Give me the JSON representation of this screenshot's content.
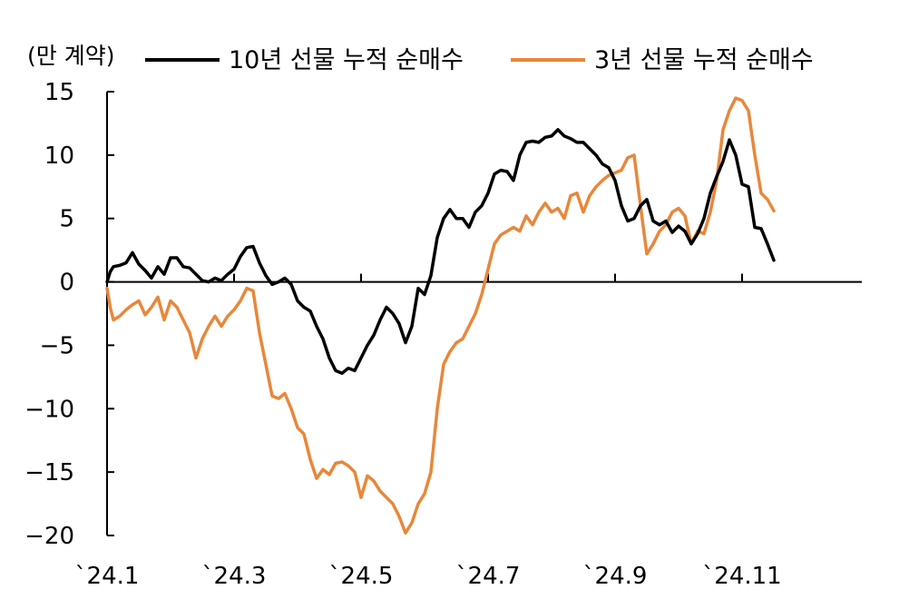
{
  "chart_data": {
    "type": "line",
    "unit_label": "(만 계약)",
    "ylim": [
      -20,
      15
    ],
    "yticks": [
      15,
      10,
      5,
      0,
      -5,
      -10,
      -15,
      -20
    ],
    "ytick_labels": [
      "15",
      "10",
      "5",
      "0",
      "−5",
      "−10",
      "−15",
      "−20"
    ],
    "xlim": [
      0,
      12
    ],
    "xticks": [
      0,
      2,
      4,
      6,
      8,
      10
    ],
    "xtick_labels": [
      "`24.1",
      "`24.3",
      "`24.5",
      "`24.7",
      "`24.9",
      "`24.11"
    ],
    "grid": false,
    "legend_position": "top",
    "series": [
      {
        "name": "10년 선물 누적 순매수",
        "color": "#000000",
        "points": [
          [
            0.0,
            0.0
          ],
          [
            0.05,
            0.8
          ],
          [
            0.1,
            1.2
          ],
          [
            0.2,
            1.3
          ],
          [
            0.3,
            1.5
          ],
          [
            0.4,
            2.3
          ],
          [
            0.5,
            1.4
          ],
          [
            0.6,
            0.9
          ],
          [
            0.7,
            0.3
          ],
          [
            0.8,
            1.2
          ],
          [
            0.9,
            0.6
          ],
          [
            1.0,
            1.9
          ],
          [
            1.1,
            1.9
          ],
          [
            1.2,
            1.2
          ],
          [
            1.3,
            1.1
          ],
          [
            1.4,
            0.6
          ],
          [
            1.5,
            0.1
          ],
          [
            1.6,
            0.0
          ],
          [
            1.7,
            0.3
          ],
          [
            1.8,
            0.1
          ],
          [
            1.9,
            0.6
          ],
          [
            2.0,
            1.0
          ],
          [
            2.1,
            2.0
          ],
          [
            2.2,
            2.7
          ],
          [
            2.3,
            2.8
          ],
          [
            2.4,
            1.5
          ],
          [
            2.5,
            0.5
          ],
          [
            2.6,
            -0.2
          ],
          [
            2.7,
            0.0
          ],
          [
            2.8,
            0.3
          ],
          [
            2.9,
            -0.2
          ],
          [
            3.0,
            -1.5
          ],
          [
            3.1,
            -2.0
          ],
          [
            3.2,
            -2.3
          ],
          [
            3.3,
            -3.5
          ],
          [
            3.4,
            -4.5
          ],
          [
            3.5,
            -6.0
          ],
          [
            3.6,
            -7.0
          ],
          [
            3.7,
            -7.2
          ],
          [
            3.8,
            -6.8
          ],
          [
            3.9,
            -7.0
          ],
          [
            4.0,
            -6.0
          ],
          [
            4.1,
            -5.0
          ],
          [
            4.2,
            -4.2
          ],
          [
            4.3,
            -3.0
          ],
          [
            4.4,
            -2.0
          ],
          [
            4.5,
            -2.5
          ],
          [
            4.6,
            -3.3
          ],
          [
            4.7,
            -4.8
          ],
          [
            4.8,
            -3.5
          ],
          [
            4.9,
            -0.5
          ],
          [
            5.0,
            -1.0
          ],
          [
            5.1,
            0.5
          ],
          [
            5.2,
            3.5
          ],
          [
            5.3,
            5.0
          ],
          [
            5.4,
            5.7
          ],
          [
            5.5,
            5.0
          ],
          [
            5.6,
            5.0
          ],
          [
            5.7,
            4.3
          ],
          [
            5.8,
            5.5
          ],
          [
            5.9,
            6.0
          ],
          [
            6.0,
            7.0
          ],
          [
            6.1,
            8.5
          ],
          [
            6.2,
            8.8
          ],
          [
            6.3,
            8.7
          ],
          [
            6.4,
            8.0
          ],
          [
            6.5,
            10.0
          ],
          [
            6.6,
            11.0
          ],
          [
            6.7,
            11.1
          ],
          [
            6.8,
            11.0
          ],
          [
            6.9,
            11.4
          ],
          [
            7.0,
            11.5
          ],
          [
            7.1,
            12.0
          ],
          [
            7.2,
            11.5
          ],
          [
            7.3,
            11.3
          ],
          [
            7.4,
            11.0
          ],
          [
            7.5,
            11.0
          ],
          [
            7.6,
            10.5
          ],
          [
            7.7,
            10.0
          ],
          [
            7.8,
            9.3
          ],
          [
            7.9,
            9.0
          ],
          [
            8.0,
            8.0
          ],
          [
            8.1,
            6.0
          ],
          [
            8.2,
            4.8
          ],
          [
            8.3,
            5.0
          ],
          [
            8.4,
            6.0
          ],
          [
            8.5,
            6.5
          ],
          [
            8.6,
            4.8
          ],
          [
            8.7,
            4.5
          ],
          [
            8.8,
            4.8
          ],
          [
            8.9,
            3.9
          ],
          [
            9.0,
            4.4
          ],
          [
            9.1,
            4.0
          ],
          [
            9.2,
            3.0
          ],
          [
            9.3,
            3.8
          ],
          [
            9.4,
            5.0
          ],
          [
            9.5,
            7.0
          ],
          [
            9.6,
            8.3
          ],
          [
            9.7,
            9.5
          ],
          [
            9.8,
            11.2
          ],
          [
            9.9,
            10.0
          ],
          [
            10.0,
            7.7
          ],
          [
            10.1,
            7.5
          ],
          [
            10.2,
            4.3
          ],
          [
            10.3,
            4.2
          ],
          [
            10.4,
            3.0
          ],
          [
            10.5,
            1.7
          ]
        ]
      },
      {
        "name": "3년 선물 누적 순매수",
        "color": "#E8873A",
        "points": [
          [
            0.0,
            -0.5
          ],
          [
            0.05,
            -2.0
          ],
          [
            0.1,
            -3.0
          ],
          [
            0.2,
            -2.7
          ],
          [
            0.3,
            -2.2
          ],
          [
            0.4,
            -1.8
          ],
          [
            0.5,
            -1.5
          ],
          [
            0.6,
            -2.6
          ],
          [
            0.7,
            -2.0
          ],
          [
            0.8,
            -1.2
          ],
          [
            0.9,
            -3.0
          ],
          [
            1.0,
            -1.5
          ],
          [
            1.1,
            -2.0
          ],
          [
            1.2,
            -3.0
          ],
          [
            1.3,
            -4.0
          ],
          [
            1.4,
            -6.0
          ],
          [
            1.5,
            -4.5
          ],
          [
            1.6,
            -3.5
          ],
          [
            1.7,
            -2.7
          ],
          [
            1.8,
            -3.5
          ],
          [
            1.9,
            -2.7
          ],
          [
            2.0,
            -2.2
          ],
          [
            2.1,
            -1.5
          ],
          [
            2.2,
            -0.5
          ],
          [
            2.3,
            -0.7
          ],
          [
            2.4,
            -4.0
          ],
          [
            2.5,
            -6.5
          ],
          [
            2.6,
            -9.0
          ],
          [
            2.7,
            -9.2
          ],
          [
            2.8,
            -8.8
          ],
          [
            2.9,
            -10.0
          ],
          [
            3.0,
            -11.5
          ],
          [
            3.1,
            -12.0
          ],
          [
            3.2,
            -14.0
          ],
          [
            3.3,
            -15.5
          ],
          [
            3.4,
            -14.8
          ],
          [
            3.5,
            -15.2
          ],
          [
            3.6,
            -14.3
          ],
          [
            3.7,
            -14.2
          ],
          [
            3.8,
            -14.5
          ],
          [
            3.9,
            -15.0
          ],
          [
            4.0,
            -17.0
          ],
          [
            4.1,
            -15.3
          ],
          [
            4.2,
            -15.7
          ],
          [
            4.3,
            -16.5
          ],
          [
            4.4,
            -17.0
          ],
          [
            4.5,
            -17.5
          ],
          [
            4.6,
            -18.5
          ],
          [
            4.7,
            -19.8
          ],
          [
            4.8,
            -19.0
          ],
          [
            4.9,
            -17.5
          ],
          [
            5.0,
            -16.7
          ],
          [
            5.1,
            -15.0
          ],
          [
            5.2,
            -10.0
          ],
          [
            5.3,
            -6.5
          ],
          [
            5.4,
            -5.5
          ],
          [
            5.5,
            -4.8
          ],
          [
            5.6,
            -4.5
          ],
          [
            5.7,
            -3.5
          ],
          [
            5.8,
            -2.5
          ],
          [
            5.9,
            -1.0
          ],
          [
            6.0,
            1.0
          ],
          [
            6.1,
            3.0
          ],
          [
            6.2,
            3.7
          ],
          [
            6.3,
            4.0
          ],
          [
            6.4,
            4.3
          ],
          [
            6.5,
            4.0
          ],
          [
            6.6,
            5.2
          ],
          [
            6.7,
            4.5
          ],
          [
            6.8,
            5.5
          ],
          [
            6.9,
            6.2
          ],
          [
            7.0,
            5.5
          ],
          [
            7.1,
            5.8
          ],
          [
            7.2,
            5.0
          ],
          [
            7.3,
            6.8
          ],
          [
            7.4,
            7.0
          ],
          [
            7.5,
            5.5
          ],
          [
            7.6,
            6.8
          ],
          [
            7.7,
            7.5
          ],
          [
            7.8,
            8.0
          ],
          [
            7.9,
            8.4
          ],
          [
            8.0,
            8.6
          ],
          [
            8.1,
            8.8
          ],
          [
            8.2,
            9.8
          ],
          [
            8.3,
            10.0
          ],
          [
            8.4,
            6.0
          ],
          [
            8.5,
            2.2
          ],
          [
            8.6,
            3.0
          ],
          [
            8.7,
            4.0
          ],
          [
            8.8,
            4.5
          ],
          [
            8.9,
            5.5
          ],
          [
            9.0,
            5.8
          ],
          [
            9.1,
            5.2
          ],
          [
            9.2,
            3.0
          ],
          [
            9.3,
            4.0
          ],
          [
            9.4,
            3.8
          ],
          [
            9.5,
            5.5
          ],
          [
            9.6,
            8.0
          ],
          [
            9.7,
            12.0
          ],
          [
            9.8,
            13.5
          ],
          [
            9.9,
            14.5
          ],
          [
            10.0,
            14.3
          ],
          [
            10.1,
            13.5
          ],
          [
            10.2,
            10.0
          ],
          [
            10.3,
            7.0
          ],
          [
            10.4,
            6.5
          ],
          [
            10.5,
            5.6
          ]
        ]
      }
    ]
  }
}
